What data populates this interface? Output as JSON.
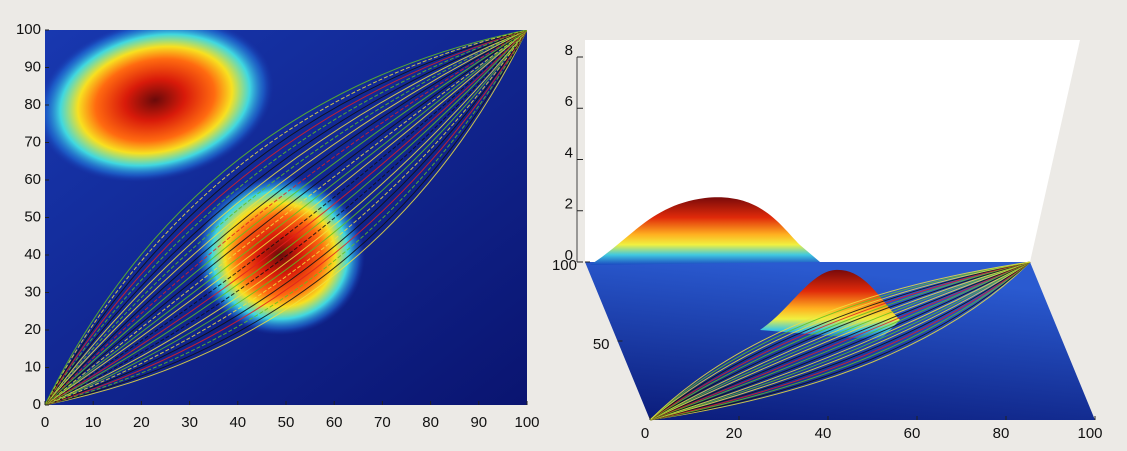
{
  "chart_data": [
    {
      "type": "heatmap",
      "xlim": [
        0,
        100
      ],
      "ylim": [
        0,
        100
      ],
      "xticks": [
        0,
        10,
        20,
        30,
        40,
        50,
        60,
        70,
        80,
        90,
        100
      ],
      "yticks": [
        0,
        10,
        20,
        30,
        40,
        50,
        60,
        70,
        80,
        90,
        100
      ]
    },
    {
      "type": "surface",
      "xlim": [
        0,
        100
      ],
      "ylim": [
        0,
        100
      ],
      "zlim": [
        0,
        8
      ],
      "xticks": [
        0,
        20,
        40,
        60,
        80,
        100
      ],
      "yticks": [
        50,
        100
      ],
      "zticks": [
        0,
        2,
        4,
        6,
        8
      ]
    }
  ]
}
